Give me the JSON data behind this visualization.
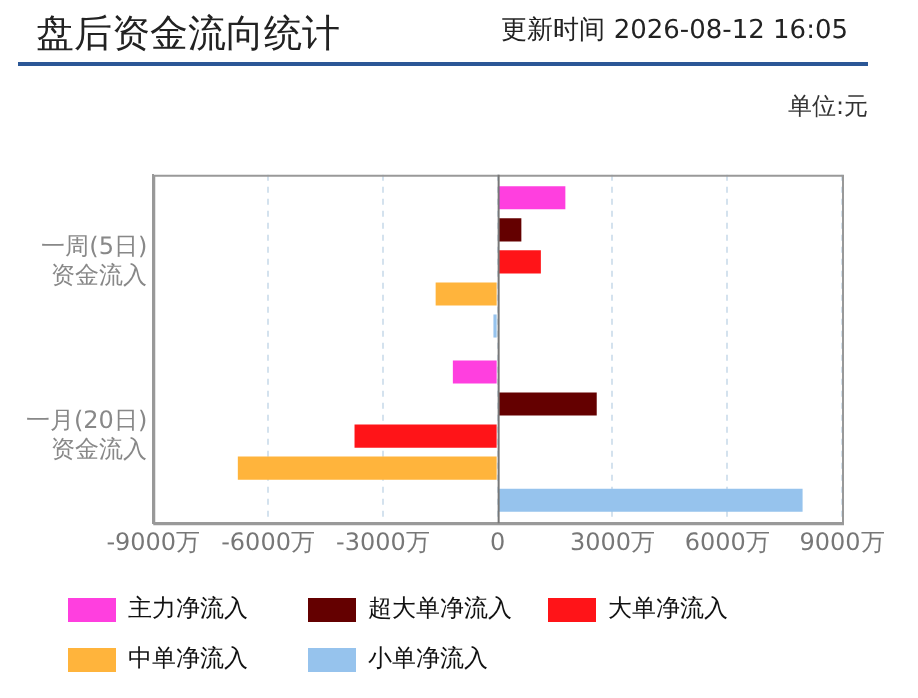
{
  "chart_data": {
    "type": "bar",
    "orientation": "horizontal",
    "title": "盘后资金流向统计",
    "subtitle": "更新时间 2026-08-12 16:05",
    "annotations": [
      "单位:元"
    ],
    "categories": [
      "一周(5日)\n资金流入",
      "一月(20日)\n资金流入"
    ],
    "series": [
      {
        "name": "主力净流入",
        "color": "#ff3fdf",
        "values": [
          1770,
          -1170
        ]
      },
      {
        "name": "超大单净流入",
        "color": "#640000",
        "values": [
          620,
          2590
        ]
      },
      {
        "name": "大单净流入",
        "color": "#ff1418",
        "values": [
          1130,
          -3740
        ]
      },
      {
        "name": "中单净流入",
        "color": "#ffb43c",
        "values": [
          -1620,
          -6790
        ]
      },
      {
        "name": "小单净流入",
        "color": "#96c3ed",
        "values": [
          -110,
          7970
        ]
      }
    ],
    "xlim": [
      -9000,
      9000
    ],
    "xticks": [
      {
        "value": -9000,
        "label": "-9000万"
      },
      {
        "value": -6000,
        "label": "-6000万"
      },
      {
        "value": -3000,
        "label": "-3000万"
      },
      0,
      {
        "value": 3000,
        "label": "3000万"
      },
      {
        "value": 6000,
        "label": "6000万"
      },
      {
        "value": 9000,
        "label": "9000万"
      }
    ],
    "grid": "x",
    "legend": "bottom"
  }
}
